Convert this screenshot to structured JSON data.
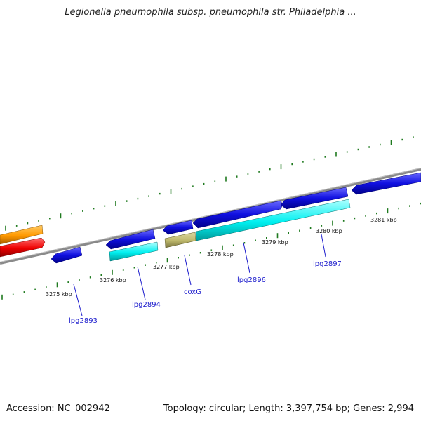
{
  "title": "Legionella pneumophila subsp. pneumophila str. Philadelphia ...",
  "footer": {
    "accession": "Accession: NC_002942",
    "summary": "Topology: circular; Length: 3,397,754 bp; Genes: 2,994"
  },
  "colors": {
    "backbone": "#8a8a8a",
    "tick_major": "#1f7a1f",
    "tick_minor": "#2a8a2a",
    "gene_blue": "#1010e0",
    "gene_cyan": "#00f0f0",
    "gene_khaki": "#bdb76b",
    "gene_orange": "#ff9900",
    "gene_red": "#ee0000",
    "label_blue": "#1a1acc"
  },
  "scale_labels": [
    "3275 kbp",
    "3276 kbp",
    "3277 kbp",
    "3278 kbp",
    "3279 kbp",
    "3280 kbp",
    "3281 kbp"
  ],
  "genes": [
    {
      "name": "lpg2893"
    },
    {
      "name": "lpg2894"
    },
    {
      "name": "coxG"
    },
    {
      "name": "lpg2896"
    },
    {
      "name": "lpg2897"
    }
  ]
}
